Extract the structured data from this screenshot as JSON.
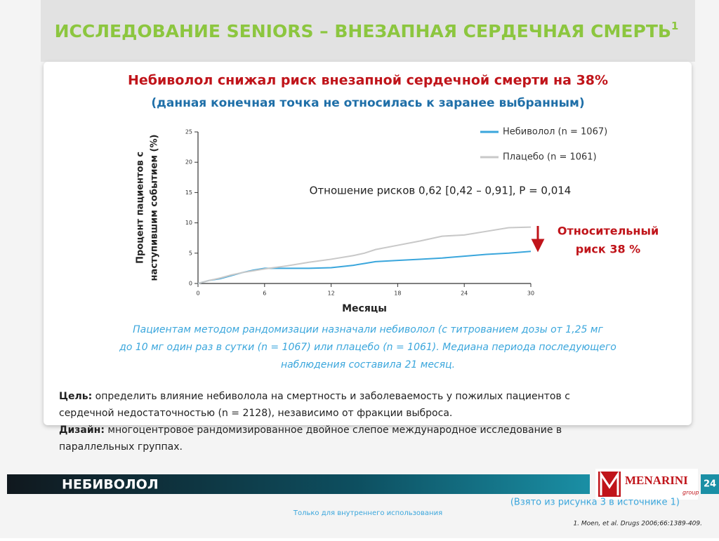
{
  "header": {
    "title": "ИССЛЕДОВАНИЕ SENIORS – ВНЕЗАПНАЯ СЕРДЕЧНАЯ СМЕРТЬ",
    "title_sup": "1"
  },
  "headline": [
    "Небиволол снижал риск внезапной сердечной смерти на 38%",
    "(данная конечная точка не относилась к заранее выбранным)"
  ],
  "chart_data": {
    "type": "line",
    "x": [
      0,
      1,
      2,
      3,
      4,
      5,
      6,
      8,
      10,
      12,
      14,
      15,
      16,
      18,
      20,
      22,
      24,
      26,
      28,
      30
    ],
    "series": [
      {
        "name": "Небиволол (n = 1067)",
        "color": "#3aa6dc",
        "values": [
          0,
          0.5,
          0.8,
          1.3,
          1.8,
          2.2,
          2.5,
          2.5,
          2.5,
          2.6,
          3.0,
          3.3,
          3.6,
          3.8,
          4.0,
          4.2,
          4.5,
          4.8,
          5.0,
          5.3
        ]
      },
      {
        "name": "Плацебо (n = 1061)",
        "color": "#c8c8c8",
        "values": [
          0,
          0.5,
          0.9,
          1.4,
          1.8,
          2.1,
          2.4,
          2.9,
          3.5,
          4.0,
          4.6,
          5.0,
          5.6,
          6.3,
          7.0,
          7.8,
          8.0,
          8.6,
          9.2,
          9.3
        ]
      }
    ],
    "xlim": [
      0,
      30
    ],
    "xticks": [
      0,
      6,
      12,
      18,
      24,
      30
    ],
    "ylim": [
      0,
      25
    ],
    "yticks": [
      0,
      5,
      10,
      15,
      20,
      25
    ],
    "xlabel": "Месяцы",
    "ylabel": [
      "Процент пациентов с",
      "наступившим событием (%)"
    ],
    "annotation": "Отношение рисков 0,62 [0,42 – 0,91], P = 0,014",
    "risk_note": [
      "Относительный",
      "риск 38 %"
    ]
  },
  "caption": [
    "Пациентам методом рандомизации назначали небиволол (с титрованием дозы от 1,25 мг",
    "до 10 мг один раз в сутки (n = 1067) или плацебо (n = 1061). Медиана периода последующего",
    "наблюдения составила 21 месяц."
  ],
  "goal": {
    "label": "Цель:",
    "lines": [
      " определить влияние небиволола на смертность и заболеваемость у пожилых пациентов с",
      "сердечной недостаточностью (n = 2128), независимо от фракции выброса."
    ]
  },
  "design": {
    "label": "Дизайн:",
    "lines": [
      " многоцентровое рандомизированное двойное слепое международное исследование в",
      "параллельных группах."
    ]
  },
  "footer": {
    "drug": "НЕБИВОЛОЛ",
    "logo": "MENARINI",
    "logo_sub": "group",
    "page": "24",
    "source_note": "(Взято из рисунка 3 в источнике 1)",
    "internal": "Только для внутреннего использования",
    "reference": "1. Moen, et al. Drugs 2006;66:1389-409."
  }
}
